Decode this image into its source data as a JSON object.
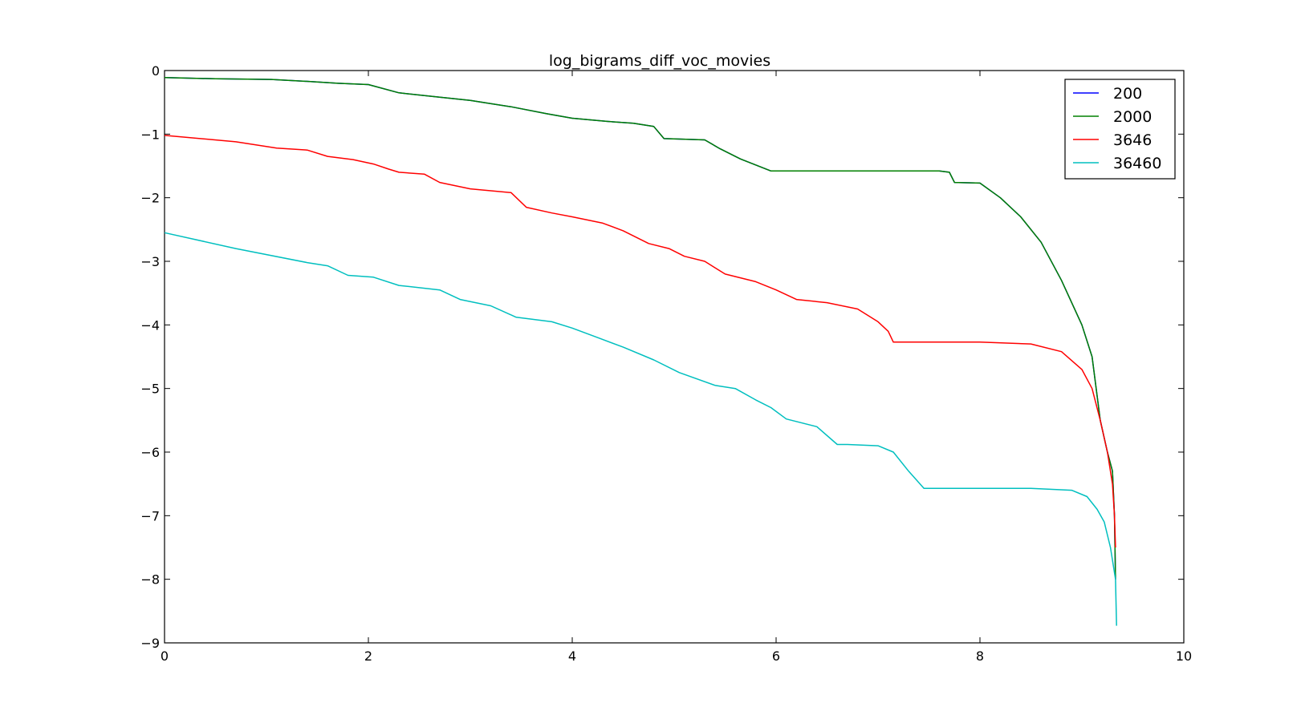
{
  "chart_data": {
    "type": "line",
    "title": "log_bigrams_diff_voc_movies",
    "xlabel": "",
    "ylabel": "",
    "xlim": [
      0,
      10
    ],
    "ylim": [
      -9,
      0
    ],
    "x_ticks": [
      0,
      2,
      4,
      6,
      8,
      10
    ],
    "y_ticks": [
      0,
      -1,
      -2,
      -3,
      -4,
      -5,
      -6,
      -7,
      -8,
      -9
    ],
    "grid": false,
    "legend_position": "top-right",
    "series": [
      {
        "name": "200",
        "color": "#0000ff",
        "x": [
          0,
          0.5,
          1.05,
          1.4,
          1.7,
          2.0,
          2.3,
          2.7,
          3.0,
          3.4,
          3.75,
          4.0,
          4.35,
          4.6,
          4.8,
          4.9,
          5.3,
          5.45,
          5.65,
          5.95,
          6.5,
          7.0,
          7.6,
          7.7,
          7.75,
          8.0,
          8.2,
          8.4,
          8.6,
          8.8,
          9.0,
          9.1,
          9.18,
          9.25,
          9.3,
          9.32,
          9.33
        ],
        "y": [
          -0.11,
          -0.13,
          -0.14,
          -0.17,
          -0.2,
          -0.22,
          -0.35,
          -0.42,
          -0.47,
          -0.57,
          -0.68,
          -0.75,
          -0.8,
          -0.83,
          -0.88,
          -1.07,
          -1.09,
          -1.23,
          -1.39,
          -1.58,
          -1.58,
          -1.58,
          -1.58,
          -1.6,
          -1.76,
          -1.77,
          -2.0,
          -2.3,
          -2.7,
          -3.3,
          -4.0,
          -4.5,
          -5.5,
          -6.0,
          -6.3,
          -7.0,
          -8.0
        ]
      },
      {
        "name": "2000",
        "color": "#008000",
        "x": [
          0,
          0.5,
          1.05,
          1.4,
          1.7,
          2.0,
          2.3,
          2.7,
          3.0,
          3.4,
          3.75,
          4.0,
          4.35,
          4.6,
          4.8,
          4.9,
          5.3,
          5.45,
          5.65,
          5.95,
          6.5,
          7.0,
          7.6,
          7.7,
          7.75,
          8.0,
          8.2,
          8.4,
          8.6,
          8.8,
          9.0,
          9.1,
          9.18,
          9.25,
          9.3,
          9.32,
          9.33
        ],
        "y": [
          -0.11,
          -0.13,
          -0.14,
          -0.17,
          -0.2,
          -0.22,
          -0.35,
          -0.42,
          -0.47,
          -0.57,
          -0.68,
          -0.75,
          -0.8,
          -0.83,
          -0.88,
          -1.07,
          -1.09,
          -1.23,
          -1.39,
          -1.58,
          -1.58,
          -1.58,
          -1.58,
          -1.6,
          -1.76,
          -1.77,
          -2.0,
          -2.3,
          -2.7,
          -3.3,
          -4.0,
          -4.5,
          -5.5,
          -6.0,
          -6.3,
          -7.0,
          -8.0
        ]
      },
      {
        "name": "3646",
        "color": "#ff0000",
        "x": [
          0,
          0.7,
          1.1,
          1.4,
          1.6,
          1.85,
          2.05,
          2.2,
          2.3,
          2.55,
          2.7,
          3.0,
          3.4,
          3.55,
          3.8,
          4.0,
          4.3,
          4.5,
          4.75,
          4.95,
          5.1,
          5.3,
          5.5,
          5.8,
          6.0,
          6.2,
          6.5,
          6.8,
          7.0,
          7.1,
          7.15,
          7.5,
          8.0,
          8.5,
          8.8,
          9.0,
          9.1,
          9.18,
          9.25,
          9.3,
          9.32,
          9.33
        ],
        "y": [
          -1.02,
          -1.12,
          -1.22,
          -1.25,
          -1.35,
          -1.4,
          -1.47,
          -1.55,
          -1.6,
          -1.63,
          -1.76,
          -1.86,
          -1.92,
          -2.15,
          -2.24,
          -2.3,
          -2.4,
          -2.52,
          -2.72,
          -2.8,
          -2.92,
          -3.0,
          -3.2,
          -3.32,
          -3.45,
          -3.6,
          -3.65,
          -3.75,
          -3.95,
          -4.1,
          -4.27,
          -4.27,
          -4.27,
          -4.3,
          -4.42,
          -4.7,
          -5.0,
          -5.5,
          -6.0,
          -6.5,
          -7.0,
          -7.5
        ]
      },
      {
        "name": "36460",
        "color": "#00bfbf",
        "x": [
          0,
          0.7,
          1.4,
          1.6,
          1.8,
          2.05,
          2.3,
          2.7,
          2.9,
          3.2,
          3.45,
          3.8,
          4.0,
          4.25,
          4.5,
          4.8,
          5.05,
          5.4,
          5.6,
          5.8,
          5.95,
          6.1,
          6.4,
          6.6,
          6.7,
          7.0,
          7.15,
          7.3,
          7.45,
          8.0,
          8.5,
          8.9,
          9.05,
          9.15,
          9.22,
          9.28,
          9.33,
          9.34
        ],
        "y": [
          -2.55,
          -2.8,
          -3.02,
          -3.07,
          -3.22,
          -3.25,
          -3.38,
          -3.45,
          -3.6,
          -3.7,
          -3.88,
          -3.95,
          -4.05,
          -4.2,
          -4.35,
          -4.55,
          -4.75,
          -4.95,
          -5.0,
          -5.18,
          -5.3,
          -5.48,
          -5.6,
          -5.88,
          -5.88,
          -5.9,
          -6.0,
          -6.3,
          -6.57,
          -6.57,
          -6.57,
          -6.6,
          -6.7,
          -6.9,
          -7.1,
          -7.5,
          -8.0,
          -8.73
        ]
      }
    ]
  }
}
